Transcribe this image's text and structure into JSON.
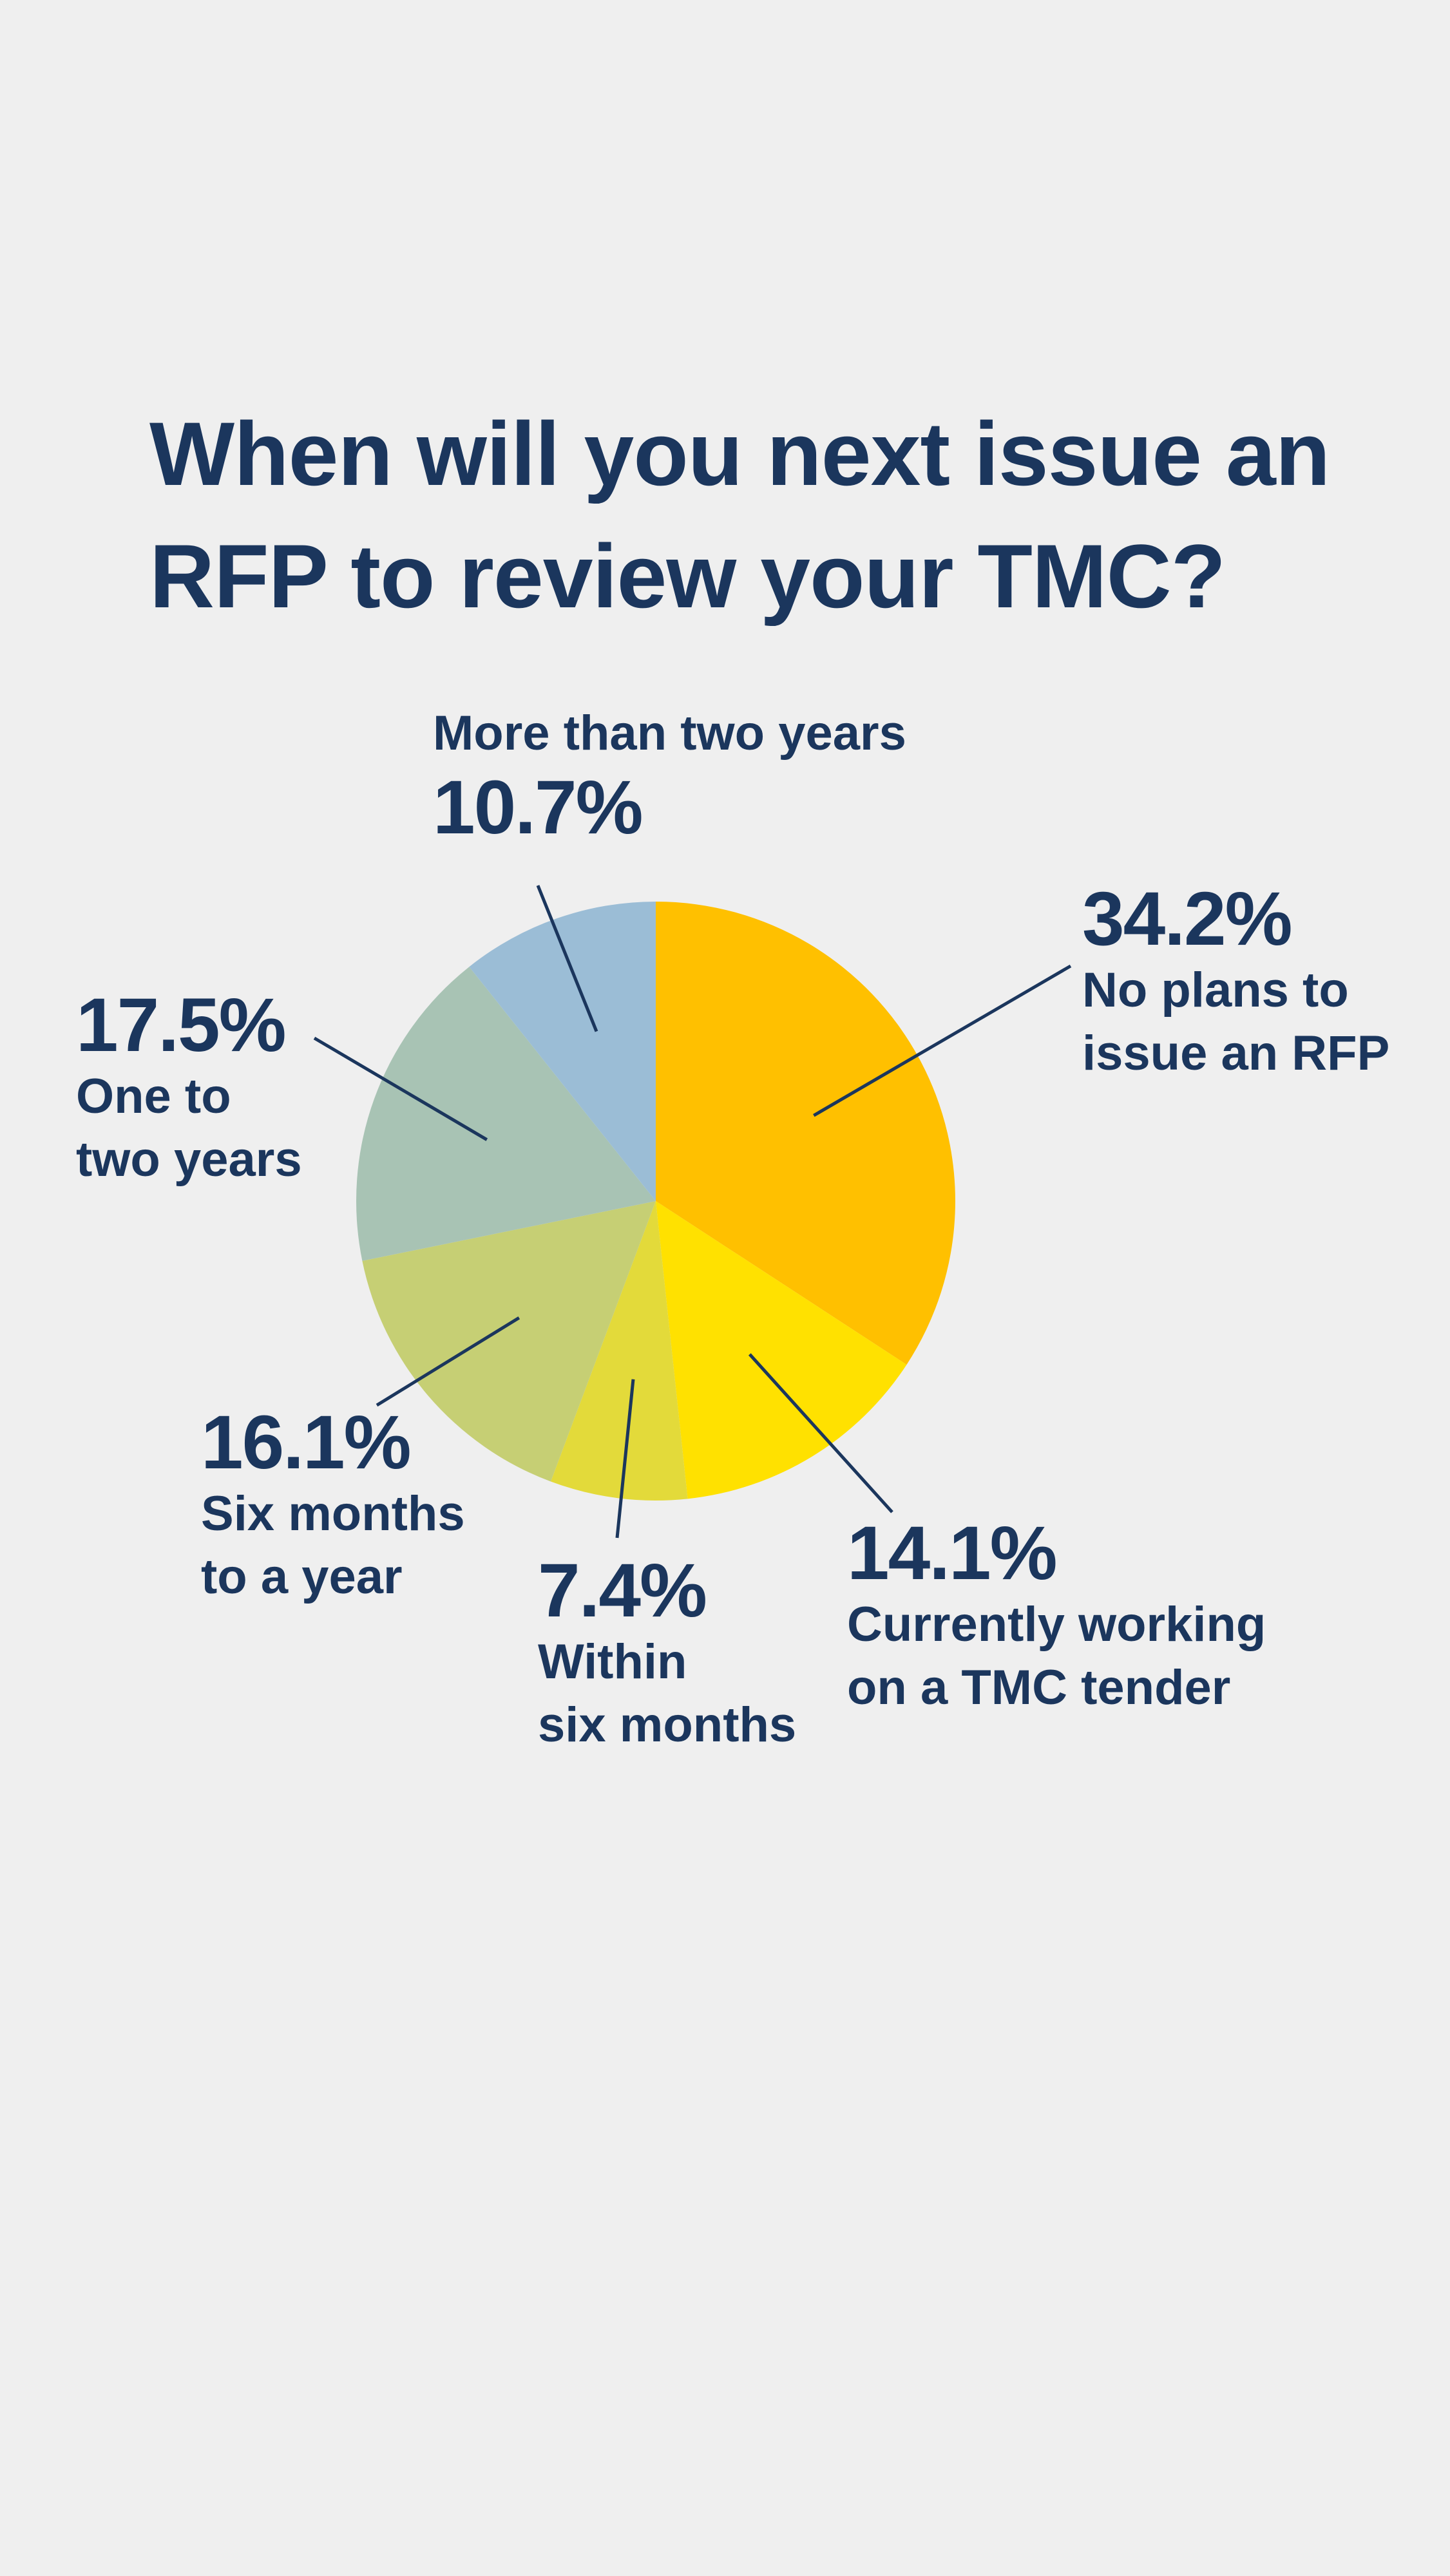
{
  "title": "When will you next issue an RFP to review your TMC?",
  "colors": {
    "background": "#efefef",
    "text": "#1b365d",
    "leader": "#1b365d"
  },
  "chart_data": {
    "type": "pie",
    "title": "When will you next issue an RFP to review your TMC?",
    "unit": "%",
    "slices": [
      {
        "label": "No plans to\nissue an RFP",
        "value": 34.2,
        "pct_label": "34.2%",
        "color": "#ffc000"
      },
      {
        "label": "Currently working\non a TMC tender",
        "value": 14.1,
        "pct_label": "14.1%",
        "color": "#ffe100"
      },
      {
        "label": "Within\nsix months",
        "value": 7.4,
        "pct_label": "7.4%",
        "color": "#e3da3a"
      },
      {
        "label": "Six months\nto a year",
        "value": 16.1,
        "pct_label": "16.1%",
        "color": "#c6cf74"
      },
      {
        "label": "One to\ntwo years",
        "value": 17.5,
        "pct_label": "17.5%",
        "color": "#a8c3b4"
      },
      {
        "label": "More than two years",
        "value": 10.7,
        "pct_label": "10.7%",
        "color": "#9bbdd6"
      }
    ]
  }
}
